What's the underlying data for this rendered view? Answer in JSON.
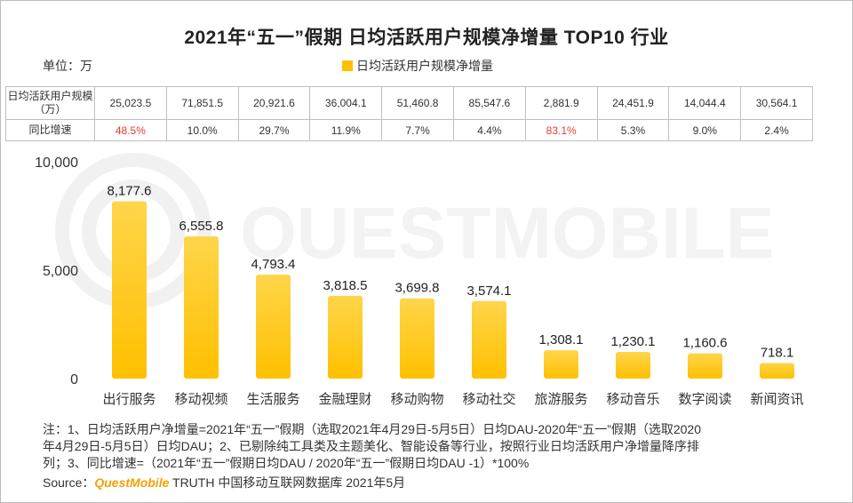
{
  "title": "2021年“五一”假期 日均活跃用户规模净增量 TOP10 行业",
  "unit_label": "单位：万",
  "legend_label": "日均活跃用户规模净增量",
  "colors": {
    "bar": "#ffc000",
    "bar_top": "#ffd54a",
    "red": "#e8383d",
    "brand": "#f5a000"
  },
  "table": {
    "row1_label": "日均活跃用户规模（万）",
    "row1_values": [
      "25,023.5",
      "71,851.5",
      "20,921.6",
      "36,004.1",
      "51,460.8",
      "85,547.6",
      "2,881.9",
      "24,451.9",
      "14,044.4",
      "30,564.1"
    ],
    "row2_label": "同比增速",
    "row2_values": [
      "48.5%",
      "10.0%",
      "29.7%",
      "11.9%",
      "7.7%",
      "4.4%",
      "83.1%",
      "5.3%",
      "9.0%",
      "2.4%"
    ],
    "row2_highlight": [
      true,
      false,
      false,
      false,
      false,
      false,
      true,
      false,
      false,
      false
    ]
  },
  "chart_data": {
    "type": "bar",
    "title": "2021年“五一”假期 日均活跃用户规模净增量 TOP10 行业",
    "categories": [
      "出行服务",
      "移动视频",
      "生活服务",
      "金融理财",
      "移动购物",
      "移动社交",
      "旅游服务",
      "移动音乐",
      "数字阅读",
      "新闻资讯"
    ],
    "values": [
      8177.6,
      6555.8,
      4793.4,
      3818.5,
      3699.8,
      3574.1,
      1308.1,
      1230.1,
      1160.6,
      718.1
    ],
    "value_labels": [
      "8,177.6",
      "6,555.8",
      "4,793.4",
      "3,818.5",
      "3,699.8",
      "3,574.1",
      "1,308.1",
      "1,230.1",
      "1,160.6",
      "718.1"
    ],
    "series_name": "日均活跃用户规模净增量",
    "ylim": [
      0,
      10000
    ],
    "yticks": [
      0,
      5000,
      10000
    ],
    "ytick_labels": [
      "0",
      "5,000",
      "10,000"
    ],
    "xlabel": "",
    "ylabel": "",
    "grid": false
  },
  "notes": {
    "line1": "注：1、日均活跃用户净增量=2021年“五一”假期（选取2021年4月29日-5月5日）日均DAU-2020年“五一”假期（选取2020",
    "line2": "年4月29日-5月5日）日均DAU；2、已剔除纯工具类及主题美化、智能设备等行业，按照行业日均活跃用户净增量降序排",
    "line3": "列；3、同比增速=（2021年“五一”假期日均DAU / 2020年“五一”假期日均DAU -1）*100%"
  },
  "source": {
    "prefix": "Source：",
    "brand": "QuestMobile",
    "suffix": " TRUTH 中国移动互联网数据库 2021年5月"
  }
}
